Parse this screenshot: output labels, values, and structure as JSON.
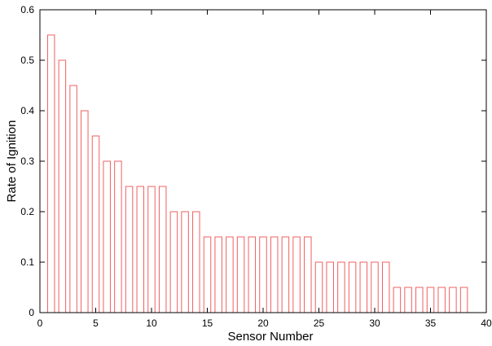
{
  "chart_data": {
    "type": "bar",
    "title": "",
    "xlabel": "Sensor Number",
    "ylabel": "Rate of Ignition",
    "xlim": [
      0,
      40
    ],
    "ylim": [
      0,
      0.6
    ],
    "x_ticks": [
      0,
      5,
      10,
      15,
      20,
      25,
      30,
      35,
      40
    ],
    "y_ticks": [
      0,
      0.1,
      0.2,
      0.3,
      0.4,
      0.5,
      0.6
    ],
    "x_tick_labels": [
      "0",
      "5",
      "10",
      "15",
      "20",
      "25",
      "30",
      "35",
      "40"
    ],
    "y_tick_labels": [
      "0",
      "0.1",
      "0.2",
      "0.3",
      "0.4",
      "0.5",
      "0.6"
    ],
    "grid": false,
    "legend": "none",
    "bar_style": "outline",
    "bar_color": "#f06060",
    "x": [
      1,
      2,
      3,
      4,
      5,
      6,
      7,
      8,
      9,
      10,
      11,
      12,
      13,
      14,
      15,
      16,
      17,
      18,
      19,
      20,
      21,
      22,
      23,
      24,
      25,
      26,
      27,
      28,
      29,
      30,
      31,
      32,
      33,
      34,
      35,
      36,
      37,
      38
    ],
    "values": [
      0.55,
      0.5,
      0.45,
      0.4,
      0.35,
      0.3,
      0.3,
      0.25,
      0.25,
      0.25,
      0.25,
      0.2,
      0.2,
      0.2,
      0.15,
      0.15,
      0.15,
      0.15,
      0.15,
      0.15,
      0.15,
      0.15,
      0.15,
      0.15,
      0.1,
      0.1,
      0.1,
      0.1,
      0.1,
      0.1,
      0.1,
      0.05,
      0.05,
      0.05,
      0.05,
      0.05,
      0.05,
      0.05
    ]
  }
}
